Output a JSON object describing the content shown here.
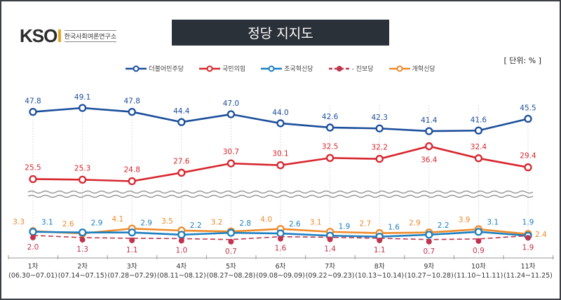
{
  "logo": {
    "mark": "KSOI",
    "subtitle": "한국사회여론연구소"
  },
  "unit": "[ 단위: % ]",
  "chart_data": {
    "type": "line",
    "title": "정당 지지도",
    "categories": [
      "1차",
      "2차",
      "3차",
      "4차",
      "5차",
      "6차",
      "7차",
      "8차",
      "9차",
      "10차",
      "11차"
    ],
    "category_dates": [
      "(06.30~07.01)",
      "(07.14~07.15)",
      "(07.28~07.29)",
      "(08.11~08.12)",
      "(08.27~08.28)",
      "(09.08~09.09)",
      "(09.22~09.23)",
      "(10.13~10.14)",
      "(10.27~10.28)",
      "(11.10~11.11)",
      "(11.24~11.25)"
    ],
    "axis_break": true,
    "legend_position": "top-center",
    "series": [
      {
        "name": "더불어민주당",
        "color": "#1a4e9c",
        "dashed": false,
        "values": [
          47.8,
          49.1,
          47.8,
          44.4,
          47.0,
          44.0,
          42.6,
          42.3,
          41.4,
          41.6,
          45.5
        ]
      },
      {
        "name": "국민의힘",
        "color": "#d7262e",
        "dashed": false,
        "values": [
          25.5,
          25.3,
          24.8,
          27.6,
          30.7,
          30.1,
          32.5,
          32.2,
          36.4,
          32.4,
          29.4
        ]
      },
      {
        "name": "조국혁신당",
        "color": "#1c7fc0",
        "dashed": false,
        "values": [
          3.1,
          2.9,
          2.9,
          2.2,
          2.8,
          2.6,
          1.9,
          1.6,
          2.2,
          3.1,
          1.9
        ]
      },
      {
        "name": "진보당",
        "color": "#c0334d",
        "dashed": true,
        "values": [
          2.0,
          1.3,
          1.1,
          1.0,
          0.7,
          1.6,
          1.4,
          1.1,
          0.7,
          0.9,
          1.9
        ]
      },
      {
        "name": "개혁신당",
        "color": "#ee8a2a",
        "dashed": false,
        "values": [
          3.3,
          2.6,
          4.1,
          3.5,
          3.2,
          4.0,
          3.1,
          2.7,
          2.9,
          3.9,
          2.4
        ]
      }
    ]
  }
}
